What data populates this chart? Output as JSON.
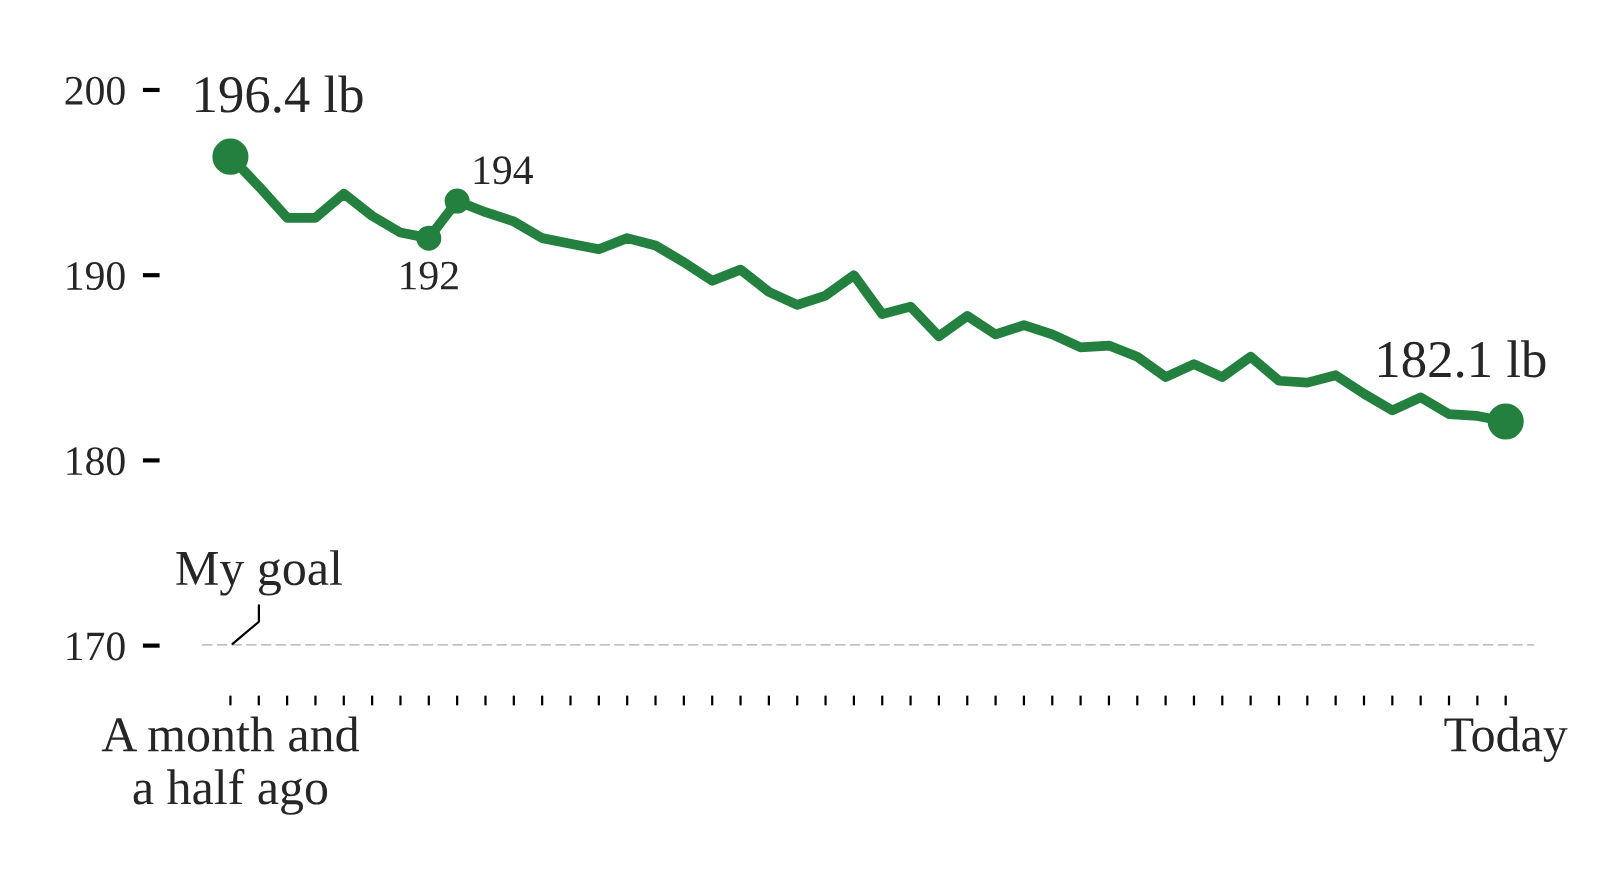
{
  "chart_data": {
    "type": "line",
    "categories": [
      "A month and\na half ago",
      null,
      null,
      null,
      null,
      null,
      null,
      null,
      null,
      null,
      null,
      null,
      null,
      null,
      null,
      null,
      null,
      null,
      null,
      null,
      null,
      null,
      null,
      null,
      null,
      null,
      null,
      null,
      null,
      null,
      null,
      null,
      null,
      null,
      null,
      null,
      null,
      null,
      null,
      null,
      null,
      null,
      null,
      null,
      null,
      "Today"
    ],
    "series": [
      {
        "color": "#23803f",
        "values": [
          196.4,
          194.8,
          193.1,
          193.1,
          194.4,
          193.2,
          192.3,
          192,
          194,
          193.4,
          192.9,
          192.0,
          191.7,
          191.4,
          192.0,
          191.6,
          190.7,
          189.7,
          190.3,
          189.1,
          188.4,
          188.9,
          190.0,
          187.9,
          188.3,
          186.7,
          187.8,
          186.8,
          187.3,
          186.8,
          186.1,
          186.2,
          185.6,
          184.5,
          185.2,
          184.5,
          185.6,
          184.3,
          184.2,
          184.6,
          183.6,
          182.7,
          183.4,
          182.5,
          182.4,
          182.1
        ],
        "value_labels": [
          "196.4 lb",
          null,
          null,
          null,
          null,
          null,
          null,
          "192",
          "194",
          null,
          null,
          null,
          null,
          null,
          null,
          null,
          null,
          null,
          null,
          null,
          null,
          null,
          null,
          null,
          null,
          null,
          null,
          null,
          null,
          null,
          null,
          null,
          null,
          null,
          null,
          null,
          null,
          null,
          null,
          null,
          null,
          null,
          null,
          null,
          null,
          "182.1 lb"
        ]
      }
    ],
    "ylim": [
      170,
      200
    ],
    "yticks": [
      170,
      180,
      190,
      200
    ],
    "ref_lines": [
      {
        "axis": "y",
        "value": 170,
        "label": "My goal",
        "color": "#aaaaaa",
        "line_style": "dashed"
      }
    ],
    "grid": false,
    "marker": "none",
    "line_style": "solid"
  }
}
